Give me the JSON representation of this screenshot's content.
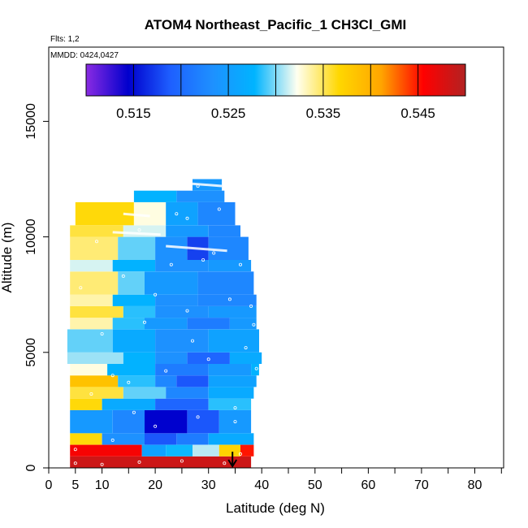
{
  "chart_data": {
    "type": "heatmap",
    "title": "ATOM4 Northeast_Pacific_1 CH3Cl_GMI",
    "flights_label": "Flts: 1,2",
    "dates_label": "MMDD: 0424,0427",
    "xlabel": "Latitude (deg N)",
    "ylabel": "Altitude (m)",
    "xlim": [
      0,
      85
    ],
    "ylim": [
      0,
      18300
    ],
    "x_ticks": [
      0,
      5,
      10,
      20,
      30,
      40,
      50,
      60,
      70,
      80
    ],
    "x_tick_labels": [
      "0",
      "5",
      "10",
      "20",
      "30",
      "40",
      "50",
      "60",
      "70",
      "80"
    ],
    "x_minor_ticks": [
      15,
      25,
      35,
      45,
      55,
      65,
      75,
      85
    ],
    "y_ticks": [
      0,
      5000,
      10000,
      15000
    ],
    "y_tick_labels": [
      "0",
      "5000",
      "10000",
      "15000"
    ],
    "colorbar": {
      "min": 0.51,
      "max": 0.55,
      "tick_values": [
        0.515,
        0.525,
        0.535,
        0.545
      ],
      "tick_labels": [
        "0.515",
        "0.525",
        "0.535",
        "0.545"
      ],
      "divider_values": [
        0.515,
        0.52,
        0.525,
        0.53,
        0.535,
        0.54,
        0.545
      ],
      "colors": [
        "#8a2be2",
        "#0000cd",
        "#1e5fff",
        "#1e90ff",
        "#00b4ff",
        "#fffff0",
        "#ffd700",
        "#ffa500",
        "#ff0000",
        "#b22222"
      ]
    },
    "marker": {
      "type": "arrow-down",
      "latitude": 34.5,
      "altitude": 700
    },
    "bands": [
      {
        "alt_min": 0,
        "alt_max": 500,
        "segments": [
          {
            "lat_min": 4,
            "lat_max": 38,
            "value": 0.5485
          }
        ]
      },
      {
        "alt_min": 500,
        "alt_max": 1000,
        "segments": [
          {
            "lat_min": 4,
            "lat_max": 17.5,
            "value": 0.546
          },
          {
            "lat_min": 17.5,
            "lat_max": 22,
            "value": 0.5255
          },
          {
            "lat_min": 22,
            "lat_max": 27,
            "value": 0.528
          },
          {
            "lat_min": 27,
            "lat_max": 32,
            "value": 0.531
          },
          {
            "lat_min": 32,
            "lat_max": 36,
            "value": 0.537
          },
          {
            "lat_min": 36,
            "lat_max": 38.5,
            "value": 0.545
          }
        ]
      },
      {
        "alt_min": 1000,
        "alt_max": 1500,
        "segments": [
          {
            "lat_min": 4,
            "lat_max": 10,
            "value": 0.5365
          },
          {
            "lat_min": 10,
            "lat_max": 18,
            "value": 0.5235
          },
          {
            "lat_min": 18,
            "lat_max": 24,
            "value": 0.5185
          },
          {
            "lat_min": 24,
            "lat_max": 30,
            "value": 0.5215
          },
          {
            "lat_min": 30,
            "lat_max": 38.5,
            "value": 0.5265
          }
        ]
      },
      {
        "alt_min": 1500,
        "alt_max": 2500,
        "segments": [
          {
            "lat_min": 4,
            "lat_max": 12,
            "value": 0.5245
          },
          {
            "lat_min": 12,
            "lat_max": 18,
            "value": 0.5225
          },
          {
            "lat_min": 18,
            "lat_max": 26,
            "value": 0.5145
          },
          {
            "lat_min": 26,
            "lat_max": 32,
            "value": 0.5185
          },
          {
            "lat_min": 32,
            "lat_max": 38,
            "value": 0.5245
          }
        ]
      },
      {
        "alt_min": 2500,
        "alt_max": 3000,
        "segments": [
          {
            "lat_min": 4,
            "lat_max": 10,
            "value": 0.5365
          },
          {
            "lat_min": 10,
            "lat_max": 20,
            "value": 0.5265
          },
          {
            "lat_min": 20,
            "lat_max": 30,
            "value": 0.5195
          },
          {
            "lat_min": 30,
            "lat_max": 38,
            "value": 0.5285
          }
        ]
      },
      {
        "alt_min": 3000,
        "alt_max": 3500,
        "segments": [
          {
            "lat_min": 4,
            "lat_max": 14,
            "value": 0.5355
          },
          {
            "lat_min": 14,
            "lat_max": 22,
            "value": 0.5295
          },
          {
            "lat_min": 22,
            "lat_max": 30,
            "value": 0.5225
          },
          {
            "lat_min": 30,
            "lat_max": 38.5,
            "value": 0.5265
          }
        ]
      },
      {
        "alt_min": 3500,
        "alt_max": 4000,
        "segments": [
          {
            "lat_min": 4,
            "lat_max": 13,
            "value": 0.5385
          },
          {
            "lat_min": 13,
            "lat_max": 20,
            "value": 0.5285
          },
          {
            "lat_min": 20,
            "lat_max": 24,
            "value": 0.5225
          },
          {
            "lat_min": 24,
            "lat_max": 30,
            "value": 0.5185
          },
          {
            "lat_min": 30,
            "lat_max": 39,
            "value": 0.5255
          }
        ]
      },
      {
        "alt_min": 4000,
        "alt_max": 4500,
        "segments": [
          {
            "lat_min": 4,
            "lat_max": 11,
            "value": 0.5325
          },
          {
            "lat_min": 11,
            "lat_max": 20,
            "value": 0.5275
          },
          {
            "lat_min": 20,
            "lat_max": 30,
            "value": 0.5215
          },
          {
            "lat_min": 30,
            "lat_max": 38,
            "value": 0.5245
          },
          {
            "lat_min": 38,
            "lat_max": 39.5,
            "value": 0.5275
          }
        ]
      },
      {
        "alt_min": 4500,
        "alt_max": 5000,
        "segments": [
          {
            "lat_min": 3.5,
            "lat_max": 14,
            "value": 0.5305
          },
          {
            "lat_min": 14,
            "lat_max": 20,
            "value": 0.5275
          },
          {
            "lat_min": 20,
            "lat_max": 26,
            "value": 0.5235
          },
          {
            "lat_min": 26,
            "lat_max": 34,
            "value": 0.5195
          },
          {
            "lat_min": 34,
            "lat_max": 40,
            "value": 0.5265
          }
        ]
      },
      {
        "alt_min": 5000,
        "alt_max": 6000,
        "segments": [
          {
            "lat_min": 3.5,
            "lat_max": 12,
            "value": 0.5295
          },
          {
            "lat_min": 12,
            "lat_max": 20,
            "value": 0.5265
          },
          {
            "lat_min": 20,
            "lat_max": 30,
            "value": 0.5235
          },
          {
            "lat_min": 30,
            "lat_max": 39.5,
            "value": 0.5255
          }
        ]
      },
      {
        "alt_min": 6000,
        "alt_max": 6500,
        "segments": [
          {
            "lat_min": 4,
            "lat_max": 12,
            "value": 0.5335
          },
          {
            "lat_min": 12,
            "lat_max": 18,
            "value": 0.5285
          },
          {
            "lat_min": 18,
            "lat_max": 26,
            "value": 0.5245
          },
          {
            "lat_min": 26,
            "lat_max": 34,
            "value": 0.5215
          },
          {
            "lat_min": 34,
            "lat_max": 39,
            "value": 0.5245
          }
        ]
      },
      {
        "alt_min": 6500,
        "alt_max": 7000,
        "segments": [
          {
            "lat_min": 4,
            "lat_max": 14,
            "value": 0.5355
          },
          {
            "lat_min": 14,
            "lat_max": 20,
            "value": 0.5285
          },
          {
            "lat_min": 20,
            "lat_max": 30,
            "value": 0.5235
          },
          {
            "lat_min": 30,
            "lat_max": 39,
            "value": 0.5245
          }
        ]
      },
      {
        "alt_min": 7000,
        "alt_max": 7500,
        "segments": [
          {
            "lat_min": 4,
            "lat_max": 12,
            "value": 0.5335
          },
          {
            "lat_min": 12,
            "lat_max": 20,
            "value": 0.5275
          },
          {
            "lat_min": 20,
            "lat_max": 28,
            "value": 0.5235
          },
          {
            "lat_min": 28,
            "lat_max": 39,
            "value": 0.5225
          }
        ]
      },
      {
        "alt_min": 7500,
        "alt_max": 8500,
        "segments": [
          {
            "lat_min": 4,
            "lat_max": 13,
            "value": 0.5345
          },
          {
            "lat_min": 13,
            "lat_max": 18,
            "value": 0.5295
          },
          {
            "lat_min": 18,
            "lat_max": 28,
            "value": 0.5245
          },
          {
            "lat_min": 28,
            "lat_max": 38.5,
            "value": 0.5225
          }
        ]
      },
      {
        "alt_min": 8500,
        "alt_max": 9000,
        "segments": [
          {
            "lat_min": 4,
            "lat_max": 12,
            "value": 0.5315
          },
          {
            "lat_min": 12,
            "lat_max": 20,
            "value": 0.5275
          },
          {
            "lat_min": 20,
            "lat_max": 30,
            "value": 0.5235
          },
          {
            "lat_min": 30,
            "lat_max": 38,
            "value": 0.5245
          }
        ]
      },
      {
        "alt_min": 9000,
        "alt_max": 10000,
        "segments": [
          {
            "lat_min": 4,
            "lat_max": 13,
            "value": 0.5345
          },
          {
            "lat_min": 13,
            "lat_max": 20,
            "value": 0.5295
          },
          {
            "lat_min": 20,
            "lat_max": 26,
            "value": 0.5235
          },
          {
            "lat_min": 26,
            "lat_max": 30,
            "value": 0.5175
          },
          {
            "lat_min": 30,
            "lat_max": 37.5,
            "value": 0.5225
          }
        ]
      },
      {
        "alt_min": 10000,
        "alt_max": 10500,
        "segments": [
          {
            "lat_min": 4,
            "lat_max": 14,
            "value": 0.5355
          },
          {
            "lat_min": 14,
            "lat_max": 22,
            "value": 0.5315
          },
          {
            "lat_min": 22,
            "lat_max": 30,
            "value": 0.5245
          },
          {
            "lat_min": 30,
            "lat_max": 36,
            "value": 0.5225
          }
        ]
      },
      {
        "alt_min": 10500,
        "alt_max": 11500,
        "segments": [
          {
            "lat_min": 5,
            "lat_max": 16,
            "value": 0.5365
          },
          {
            "lat_min": 16,
            "lat_max": 22,
            "value": 0.5325
          },
          {
            "lat_min": 22,
            "lat_max": 28,
            "value": 0.5255
          },
          {
            "lat_min": 28,
            "lat_max": 35,
            "value": 0.5225
          }
        ]
      },
      {
        "alt_min": 11500,
        "alt_max": 12000,
        "segments": [
          {
            "lat_min": 16,
            "lat_max": 24,
            "value": 0.5275
          },
          {
            "lat_min": 24,
            "lat_max": 33,
            "value": 0.5235
          }
        ]
      },
      {
        "alt_min": 12000,
        "alt_max": 12500,
        "segments": [
          {
            "lat_min": 27,
            "lat_max": 32.5,
            "value": 0.5245
          }
        ]
      }
    ],
    "observations": [
      [
        5,
        200
      ],
      [
        10,
        150
      ],
      [
        17,
        250
      ],
      [
        25,
        300
      ],
      [
        33,
        200
      ],
      [
        36,
        600
      ],
      [
        5,
        800
      ],
      [
        12,
        1200
      ],
      [
        20,
        1800
      ],
      [
        28,
        2200
      ],
      [
        35,
        2600
      ],
      [
        8,
        3200
      ],
      [
        15,
        3700
      ],
      [
        22,
        4200
      ],
      [
        30,
        4700
      ],
      [
        37,
        5200
      ],
      [
        10,
        5800
      ],
      [
        18,
        6300
      ],
      [
        26,
        6800
      ],
      [
        34,
        7300
      ],
      [
        6,
        7800
      ],
      [
        14,
        8300
      ],
      [
        23,
        8800
      ],
      [
        31,
        9300
      ],
      [
        38,
        7000
      ],
      [
        9,
        9800
      ],
      [
        17,
        10300
      ],
      [
        26,
        10800
      ],
      [
        32,
        11200
      ],
      [
        38.5,
        6200
      ],
      [
        39,
        4300
      ],
      [
        35,
        2000
      ],
      [
        12,
        4000
      ],
      [
        20,
        7500
      ],
      [
        29,
        9000
      ],
      [
        24,
        11000
      ],
      [
        28,
        12200
      ],
      [
        36,
        8800
      ],
      [
        16,
        2400
      ],
      [
        27,
        5500
      ]
    ],
    "trajectory_traces": [
      [
        [
          12,
          10200
        ],
        [
          21,
          10100
        ]
      ],
      [
        [
          22,
          9600
        ],
        [
          33.5,
          9400
        ]
      ],
      [
        [
          27,
          12300
        ],
        [
          32.5,
          12200
        ]
      ],
      [
        [
          14,
          11000
        ],
        [
          19,
          10900
        ]
      ]
    ]
  }
}
